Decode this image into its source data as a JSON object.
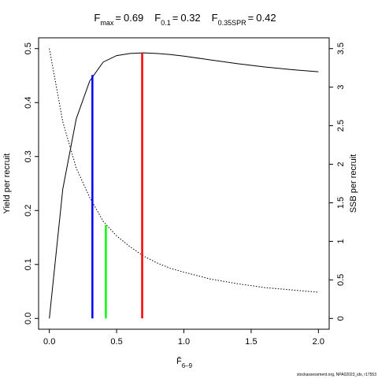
{
  "chart_data": {
    "type": "line",
    "title_items": [
      {
        "symbol": "F",
        "subscript": "max",
        "sign": "=",
        "value": 0.69,
        "color": "#ff0000",
        "height": 0.492,
        "axis": "y"
      },
      {
        "symbol": "F",
        "subscript": "0.1",
        "sign": "=",
        "value": 0.32,
        "color": "#0000ff",
        "height": 0.451,
        "axis": "y"
      },
      {
        "symbol": "F",
        "subscript": "0.35SPR",
        "sign": "=",
        "value": 0.42,
        "color": "#00ff00",
        "height": 1.21,
        "axis": "y2"
      }
    ],
    "xlabel": {
      "text": "F̄",
      "subscript": "6–9"
    },
    "ylabel": "Yield per recruit",
    "y2label": "SSB per recruit",
    "footer": "stockassessment.org, NPA02023_ids, r17553",
    "x": [
      0,
      0.1,
      0.2,
      0.3,
      0.4,
      0.5,
      0.6,
      0.7,
      0.8,
      0.9,
      1.0,
      1.2,
      1.4,
      1.6,
      1.8,
      2.0
    ],
    "series": [
      {
        "name": "Yield per recruit",
        "color": "#000000",
        "dash": "solid",
        "axis": "y",
        "values": [
          0,
          0.24,
          0.37,
          0.44,
          0.475,
          0.487,
          0.491,
          0.492,
          0.491,
          0.489,
          0.486,
          0.479,
          0.472,
          0.466,
          0.461,
          0.457
        ]
      },
      {
        "name": "SSB per recruit",
        "color": "#000000",
        "dash": "dotted",
        "axis": "y2",
        "values": [
          3.5,
          2.55,
          1.95,
          1.57,
          1.26,
          1.07,
          0.93,
          0.81,
          0.72,
          0.65,
          0.6,
          0.51,
          0.45,
          0.4,
          0.37,
          0.34
        ]
      }
    ],
    "xlim": [
      -0.08,
      2.08
    ],
    "xticks": [
      {
        "value": 0,
        "label": "0.0"
      },
      0.5,
      {
        "value": 1,
        "label": "1.0"
      },
      1.5,
      {
        "value": 2,
        "label": "2.0"
      }
    ],
    "ylim": [
      -0.02,
      0.52
    ],
    "yticks": [
      {
        "value": 0,
        "label": "0.0"
      },
      0.1,
      0.2,
      0.3,
      0.4,
      0.5
    ],
    "y2lim": [
      -0.14,
      3.64
    ],
    "y2ticks": [
      0,
      0.5,
      1,
      1.5,
      2,
      2.5,
      3,
      3.5
    ]
  }
}
